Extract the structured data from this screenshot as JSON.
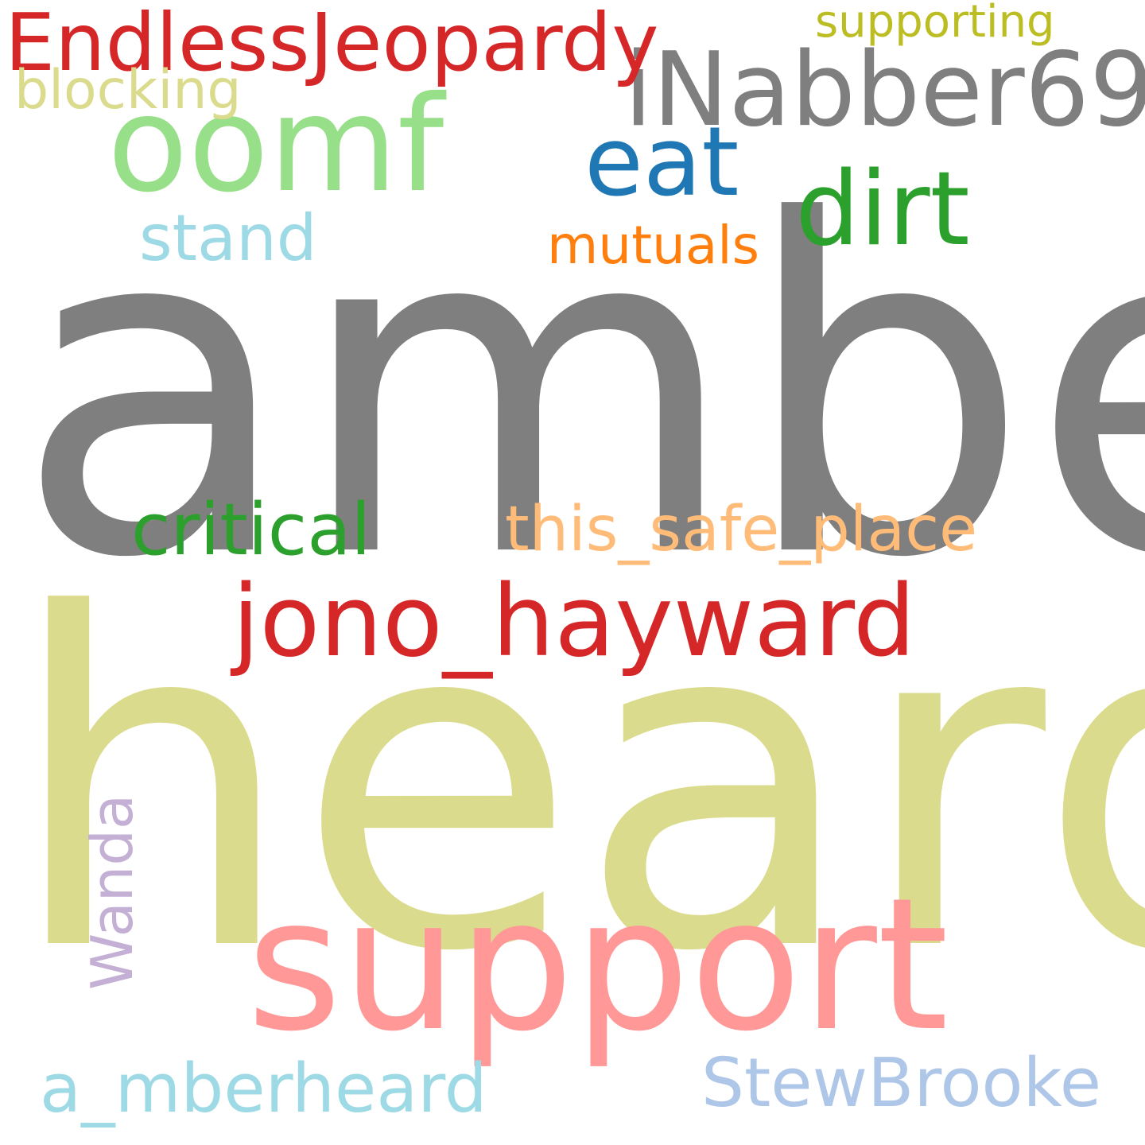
{
  "wordcloud": {
    "words": [
      {
        "id": "amber",
        "text": "amber",
        "color": "#7f7f7f"
      },
      {
        "id": "heard",
        "text": "heard",
        "color": "#dbdb8d"
      },
      {
        "id": "support",
        "text": "support",
        "color": "#ff9896"
      },
      {
        "id": "inabber69",
        "text": "iNabber69",
        "color": "#7f7f7f"
      },
      {
        "id": "oomf",
        "text": "oomf",
        "color": "#98df8a"
      },
      {
        "id": "endlessjeopardy",
        "text": "EndlessJeopardy",
        "color": "#d62728"
      },
      {
        "id": "supporting",
        "text": "supporting",
        "color": "#bcbd22"
      },
      {
        "id": "blocking",
        "text": "blocking",
        "color": "#dbdb8d"
      },
      {
        "id": "eat",
        "text": "eat",
        "color": "#1f77b4"
      },
      {
        "id": "dirt",
        "text": "dirt",
        "color": "#2ca02c"
      },
      {
        "id": "stand",
        "text": "stand",
        "color": "#9edae5"
      },
      {
        "id": "mutuals",
        "text": "mutuals",
        "color": "#ff7f0e"
      },
      {
        "id": "critical",
        "text": "critical",
        "color": "#2ca02c"
      },
      {
        "id": "this_safe_place",
        "text": "this_safe_place",
        "color": "#ffbb78"
      },
      {
        "id": "jono_hayward",
        "text": "jono_hayward",
        "color": "#d62728"
      },
      {
        "id": "wanda",
        "text": "Wanda",
        "color": "#c5b0d5"
      },
      {
        "id": "a_mberheard",
        "text": "a_mberheard",
        "color": "#9edae5"
      },
      {
        "id": "stewbrooke",
        "text": "StewBrooke",
        "color": "#aec7e8"
      }
    ]
  }
}
